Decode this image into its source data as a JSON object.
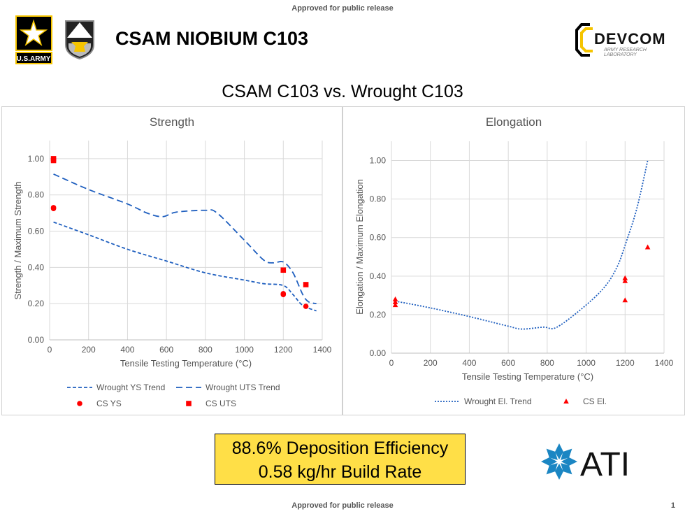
{
  "header": {
    "approved_top": "Approved for public release",
    "title": "CSAM NIOBIUM C103",
    "logos": {
      "army": "U.S.ARMY",
      "devcom": "DEVCOM",
      "devcom_sub1": "ARMY RESEARCH",
      "devcom_sub2": "LABORATORY",
      "ati": "ATI"
    }
  },
  "subtitle": "CSAM C103 vs. Wrought C103",
  "chart_data": [
    {
      "type": "scatter",
      "title": "Strength",
      "xlabel": "Tensile Testing Temperature (°C)",
      "ylabel": "Strength / Maximum Strength",
      "xlim": [
        0,
        1400
      ],
      "ylim": [
        0,
        1.1
      ],
      "xticks": [
        "0",
        "200",
        "400",
        "600",
        "800",
        "1000",
        "1200",
        "1400"
      ],
      "yticks": [
        "0.00",
        "0.20",
        "0.40",
        "0.60",
        "0.80",
        "1.00"
      ],
      "grid": true,
      "legend_placement": "bottom",
      "series": [
        {
          "name": "Wrought YS Trend",
          "kind": "line",
          "dash": "short",
          "color": "#1f5fbf",
          "x": [
            20,
            200,
            400,
            600,
            800,
            1000,
            1100,
            1200,
            1250,
            1300,
            1370
          ],
          "y": [
            0.65,
            0.58,
            0.5,
            0.435,
            0.37,
            0.33,
            0.31,
            0.3,
            0.25,
            0.19,
            0.16
          ]
        },
        {
          "name": "Wrought UTS Trend",
          "kind": "line",
          "dash": "long",
          "color": "#1f5fbf",
          "x": [
            20,
            200,
            400,
            500,
            580,
            650,
            800,
            860,
            1000,
            1100,
            1150,
            1200,
            1250,
            1300,
            1330,
            1370
          ],
          "y": [
            0.915,
            0.83,
            0.75,
            0.7,
            0.68,
            0.705,
            0.715,
            0.7,
            0.55,
            0.44,
            0.425,
            0.43,
            0.37,
            0.25,
            0.21,
            0.2
          ]
        },
        {
          "name": "CS YS",
          "kind": "marker",
          "marker": "circle",
          "color": "#ff0000",
          "x": [
            20,
            20,
            1200,
            1200,
            1316
          ],
          "y": [
            0.73,
            0.725,
            0.25,
            0.255,
            0.185
          ]
        },
        {
          "name": "CS UTS",
          "kind": "marker",
          "marker": "square",
          "color": "#ff0000",
          "x": [
            20,
            20,
            1200,
            1316
          ],
          "y": [
            1.0,
            0.99,
            0.385,
            0.305
          ]
        }
      ]
    },
    {
      "type": "scatter",
      "title": "Elongation",
      "xlabel": "Tensile Testing Temperature (°C)",
      "ylabel": "Elongation / Maximum Elongation",
      "xlim": [
        0,
        1400
      ],
      "ylim": [
        0,
        1.1
      ],
      "xticks": [
        "0",
        "200",
        "400",
        "600",
        "800",
        "1000",
        "1200",
        "1400"
      ],
      "yticks": [
        "0.00",
        "0.20",
        "0.40",
        "0.60",
        "0.80",
        "1.00"
      ],
      "grid": true,
      "legend_placement": "bottom",
      "series": [
        {
          "name": "Wrought El. Trend",
          "kind": "line",
          "dash": "dot",
          "color": "#1f5fbf",
          "x": [
            20,
            200,
            400,
            600,
            670,
            780,
            850,
            1000,
            1100,
            1160,
            1200,
            1260,
            1316
          ],
          "y": [
            0.27,
            0.235,
            0.19,
            0.14,
            0.125,
            0.135,
            0.135,
            0.25,
            0.35,
            0.45,
            0.56,
            0.75,
            1.0
          ]
        },
        {
          "name": "CS El.",
          "kind": "marker",
          "marker": "triangle",
          "color": "#ff0000",
          "x": [
            20,
            20,
            20,
            1200,
            1200,
            1200,
            1316
          ],
          "y": [
            0.28,
            0.265,
            0.25,
            0.39,
            0.375,
            0.275,
            0.55
          ]
        }
      ]
    }
  ],
  "callout": {
    "line1": "88.6% Deposition Efficiency",
    "line2": "0.58 kg/hr Build Rate",
    "background": "#ffdf47"
  },
  "footer": {
    "approved_bottom": "Approved for public release",
    "page_number": "1"
  }
}
